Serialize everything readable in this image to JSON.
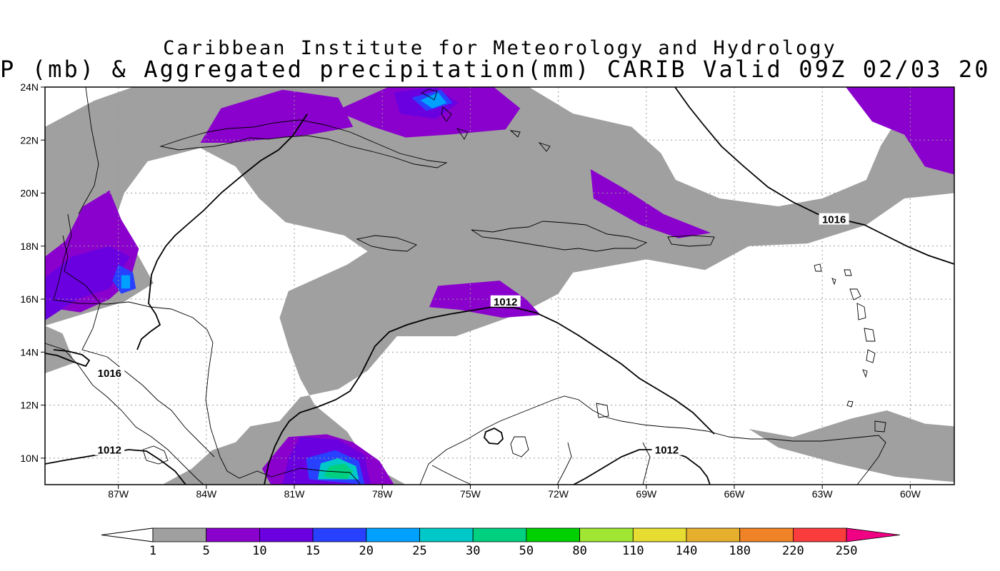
{
  "title_line1": "Caribbean Institute for Meteorology and Hydrology",
  "title_line2": "P (mb) & Aggregated precipitation(mm) CARIB Valid 09Z 02/03 20",
  "map": {
    "lon_range": [
      -89.5,
      -58.5
    ],
    "lat_range": [
      9,
      24
    ],
    "y_ticks": [
      "24N",
      "22N",
      "20N",
      "18N",
      "16N",
      "14N",
      "12N",
      "10N"
    ],
    "y_tick_values": [
      24,
      22,
      20,
      18,
      16,
      14,
      12,
      10
    ],
    "x_ticks": [
      "87W",
      "84W",
      "81W",
      "78W",
      "75W",
      "72W",
      "69W",
      "66W",
      "63W",
      "60W"
    ],
    "x_tick_values": [
      -87,
      -84,
      -81,
      -78,
      -75,
      -72,
      -69,
      -66,
      -63,
      -60
    ],
    "grid": "dotted",
    "isobar_labels": [
      {
        "text": "1016",
        "lon": -62.6,
        "lat": 19.0
      },
      {
        "text": "1012",
        "lon": -73.8,
        "lat": 15.9
      },
      {
        "text": "1016",
        "lon": -87.3,
        "lat": 13.2
      },
      {
        "text": "1012",
        "lon": -87.3,
        "lat": 10.3
      },
      {
        "text": "1012",
        "lon": -68.3,
        "lat": 10.3
      }
    ],
    "precip_areas": [
      {
        "level": "1-5",
        "color": "#a0a0a0",
        "points": [
          [
            -89.5,
            22.5
          ],
          [
            -87.8,
            23.5
          ],
          [
            -86.5,
            24
          ],
          [
            -77,
            24
          ],
          [
            -73,
            24
          ],
          [
            -71.5,
            23
          ],
          [
            -69.5,
            22.5
          ],
          [
            -68.5,
            21.5
          ],
          [
            -68,
            20.5
          ],
          [
            -66.5,
            19.8
          ],
          [
            -64.5,
            19.5
          ],
          [
            -63,
            19.8
          ],
          [
            -61.5,
            20.5
          ],
          [
            -61,
            21.8
          ],
          [
            -60.2,
            23.2
          ],
          [
            -58.5,
            23.5
          ],
          [
            -58.5,
            20
          ],
          [
            -60.2,
            19.8
          ],
          [
            -61.5,
            18.8
          ],
          [
            -63.5,
            18.1
          ],
          [
            -65.5,
            18
          ],
          [
            -67,
            17.1
          ],
          [
            -69,
            17.5
          ],
          [
            -71.5,
            17
          ],
          [
            -72,
            16.2
          ],
          [
            -73.2,
            15.5
          ],
          [
            -75.5,
            14.6
          ],
          [
            -77.5,
            14.6
          ],
          [
            -78.5,
            13.3
          ],
          [
            -79.5,
            12.6
          ],
          [
            -80.8,
            12.3
          ],
          [
            -81.5,
            11.4
          ],
          [
            -82.5,
            11.2
          ],
          [
            -83,
            10.6
          ],
          [
            -83.8,
            10.3
          ],
          [
            -84.5,
            9.6
          ],
          [
            -85.5,
            9
          ],
          [
            -77.2,
            9
          ],
          [
            -78.5,
            9.8
          ],
          [
            -79.2,
            11
          ],
          [
            -80.3,
            12
          ],
          [
            -80.8,
            13
          ],
          [
            -81.2,
            14.2
          ],
          [
            -81.5,
            15.3
          ],
          [
            -81.2,
            16.3
          ],
          [
            -80.2,
            16.8
          ],
          [
            -79.2,
            17.3
          ],
          [
            -78.5,
            17.8
          ],
          [
            -79.3,
            18.4
          ],
          [
            -81.3,
            18.9
          ],
          [
            -82.2,
            19.8
          ],
          [
            -83,
            21
          ],
          [
            -84.2,
            21.7
          ],
          [
            -86,
            21.2
          ],
          [
            -86.8,
            20
          ],
          [
            -87.2,
            18.7
          ],
          [
            -86.4,
            17.8
          ],
          [
            -85.8,
            16.6
          ],
          [
            -86.8,
            15.9
          ],
          [
            -88.3,
            15.4
          ],
          [
            -89.5,
            15
          ]
        ]
      },
      {
        "level": "1-5",
        "color": "#a0a0a0",
        "points": [
          [
            -89.5,
            13.2
          ],
          [
            -88.5,
            13.6
          ],
          [
            -88.9,
            14.7
          ],
          [
            -89.5,
            15
          ]
        ]
      },
      {
        "level": "1-5",
        "color": "#a0a0a0",
        "points": [
          [
            -65.5,
            11.1
          ],
          [
            -64,
            10.8
          ],
          [
            -62,
            11.5
          ],
          [
            -60.8,
            11.8
          ],
          [
            -59.5,
            11.3
          ],
          [
            -58.5,
            11.2
          ],
          [
            -58.5,
            9.1
          ],
          [
            -60.5,
            9.3
          ],
          [
            -62.5,
            9.8
          ],
          [
            -64.5,
            10.4
          ]
        ]
      },
      {
        "level": "5-10",
        "color": "#8a00cc",
        "points": [
          [
            -81.4,
            23.9
          ],
          [
            -79.5,
            23.6
          ],
          [
            -79,
            22.5
          ],
          [
            -80.5,
            22.2
          ],
          [
            -83.1,
            21.9
          ],
          [
            -84.2,
            21.9
          ],
          [
            -83.5,
            23.2
          ]
        ]
      },
      {
        "level": "5-10",
        "color": "#8a00cc",
        "points": [
          [
            -79.6,
            23.1
          ],
          [
            -77.8,
            24
          ],
          [
            -74.2,
            24
          ],
          [
            -73.3,
            23.2
          ],
          [
            -73.8,
            22.4
          ],
          [
            -75.8,
            22.2
          ],
          [
            -77.2,
            22.1
          ],
          [
            -78.3,
            22.5
          ]
        ]
      },
      {
        "level": "5-10",
        "color": "#8a00cc",
        "points": [
          [
            -89.5,
            15.7
          ],
          [
            -89.5,
            17.6
          ],
          [
            -88.8,
            18.2
          ],
          [
            -88.2,
            19.5
          ],
          [
            -87.3,
            20.1
          ],
          [
            -86.9,
            19
          ],
          [
            -86.3,
            17.9
          ],
          [
            -86.6,
            16.7
          ],
          [
            -87.3,
            16
          ],
          [
            -88.3,
            15.5
          ]
        ]
      },
      {
        "level": "5-10",
        "color": "#8a00cc",
        "points": [
          [
            -59.5,
            24
          ],
          [
            -62.2,
            24
          ],
          [
            -61.3,
            22.7
          ],
          [
            -60.2,
            22.2
          ],
          [
            -59.5,
            21
          ],
          [
            -58.5,
            20.7
          ],
          [
            -58.5,
            24
          ]
        ]
      },
      {
        "level": "5-10",
        "color": "#8a00cc",
        "points": [
          [
            -70.9,
            20.9
          ],
          [
            -69.8,
            20.2
          ],
          [
            -68.4,
            19.2
          ],
          [
            -66.8,
            18.5
          ],
          [
            -67.9,
            18.3
          ],
          [
            -69.2,
            18.8
          ],
          [
            -70.8,
            19.8
          ]
        ]
      },
      {
        "level": "5-10",
        "color": "#8a00cc",
        "points": [
          [
            -76.1,
            16.5
          ],
          [
            -74,
            16.7
          ],
          [
            -73.1,
            16
          ],
          [
            -72.6,
            15.4
          ],
          [
            -73.9,
            15.3
          ],
          [
            -75.4,
            15.6
          ],
          [
            -76.4,
            15.7
          ]
        ]
      },
      {
        "level": "5-10",
        "color": "#8a00cc",
        "points": [
          [
            -82.1,
            9.6
          ],
          [
            -81.2,
            10.8
          ],
          [
            -79.9,
            10.9
          ],
          [
            -79,
            10.6
          ],
          [
            -78.1,
            9.9
          ],
          [
            -77.6,
            9
          ],
          [
            -81.8,
            9
          ]
        ]
      },
      {
        "level": "10-15",
        "color": "#6a00e0",
        "points": [
          [
            -77.6,
            23.8
          ],
          [
            -76.2,
            24
          ],
          [
            -75.4,
            23.4
          ],
          [
            -76.2,
            22.8
          ],
          [
            -77.4,
            23
          ]
        ]
      },
      {
        "level": "10-15",
        "color": "#6a00e0",
        "points": [
          [
            -89.5,
            15.2
          ],
          [
            -88.4,
            16
          ],
          [
            -87.3,
            16.4
          ],
          [
            -86.6,
            17.6
          ],
          [
            -87.3,
            18
          ],
          [
            -88.6,
            17.6
          ],
          [
            -89.5,
            16.8
          ]
        ]
      },
      {
        "level": "10-15",
        "color": "#6a00e0",
        "points": [
          [
            -81.2,
            10
          ],
          [
            -80.8,
            10.8
          ],
          [
            -79.5,
            10.7
          ],
          [
            -78.6,
            10.1
          ],
          [
            -78.4,
            9
          ],
          [
            -81.4,
            9
          ]
        ]
      },
      {
        "level": "15-20",
        "color": "#2840ff",
        "points": [
          [
            -77,
            23.6
          ],
          [
            -76,
            23.9
          ],
          [
            -75.6,
            23.4
          ],
          [
            -76.5,
            23.1
          ]
        ]
      },
      {
        "level": "15-20",
        "color": "#2840ff",
        "points": [
          [
            -87,
            17.3
          ],
          [
            -86.5,
            17
          ],
          [
            -86.4,
            16.4
          ],
          [
            -86.9,
            16.2
          ],
          [
            -87.2,
            16.7
          ]
        ]
      },
      {
        "level": "15-20",
        "color": "#2840ff",
        "points": [
          [
            -80.5,
            9.2
          ],
          [
            -80.6,
            10
          ],
          [
            -79.6,
            10.3
          ],
          [
            -78.8,
            9.9
          ],
          [
            -78.6,
            9
          ]
        ]
      },
      {
        "level": "20-25",
        "color": "#00a0ff",
        "points": [
          [
            -76.7,
            23.5
          ],
          [
            -76.1,
            23.8
          ],
          [
            -75.8,
            23.4
          ],
          [
            -76.3,
            23.2
          ]
        ]
      },
      {
        "level": "20-25",
        "color": "#00a0ff",
        "points": [
          [
            -86.9,
            16.9
          ],
          [
            -86.6,
            16.9
          ],
          [
            -86.6,
            16.4
          ],
          [
            -86.9,
            16.4
          ]
        ]
      },
      {
        "level": "25-30",
        "color": "#00c8c8",
        "points": [
          [
            -80.2,
            9.2
          ],
          [
            -80.1,
            9.8
          ],
          [
            -79.5,
            10.0
          ],
          [
            -78.9,
            9.7
          ],
          [
            -78.8,
            9.2
          ]
        ]
      },
      {
        "level": "30-50",
        "color": "#00d080",
        "points": [
          [
            -80,
            9.3
          ],
          [
            -79.8,
            9.7
          ],
          [
            -79.3,
            9.8
          ],
          [
            -79.0,
            9.5
          ],
          [
            -79.2,
            9.2
          ]
        ]
      }
    ]
  },
  "colorbar": {
    "labels": [
      "1",
      "5",
      "10",
      "15",
      "20",
      "25",
      "30",
      "50",
      "80",
      "110",
      "140",
      "180",
      "220",
      "250"
    ],
    "colors": [
      "#a0a0a0",
      "#8a00cc",
      "#6a00e0",
      "#2840ff",
      "#00a0ff",
      "#00c8c8",
      "#00d080",
      "#00d000",
      "#a0e632",
      "#e6dc32",
      "#e6af2d",
      "#f08228",
      "#fa3c3c",
      "#f00082"
    ]
  }
}
